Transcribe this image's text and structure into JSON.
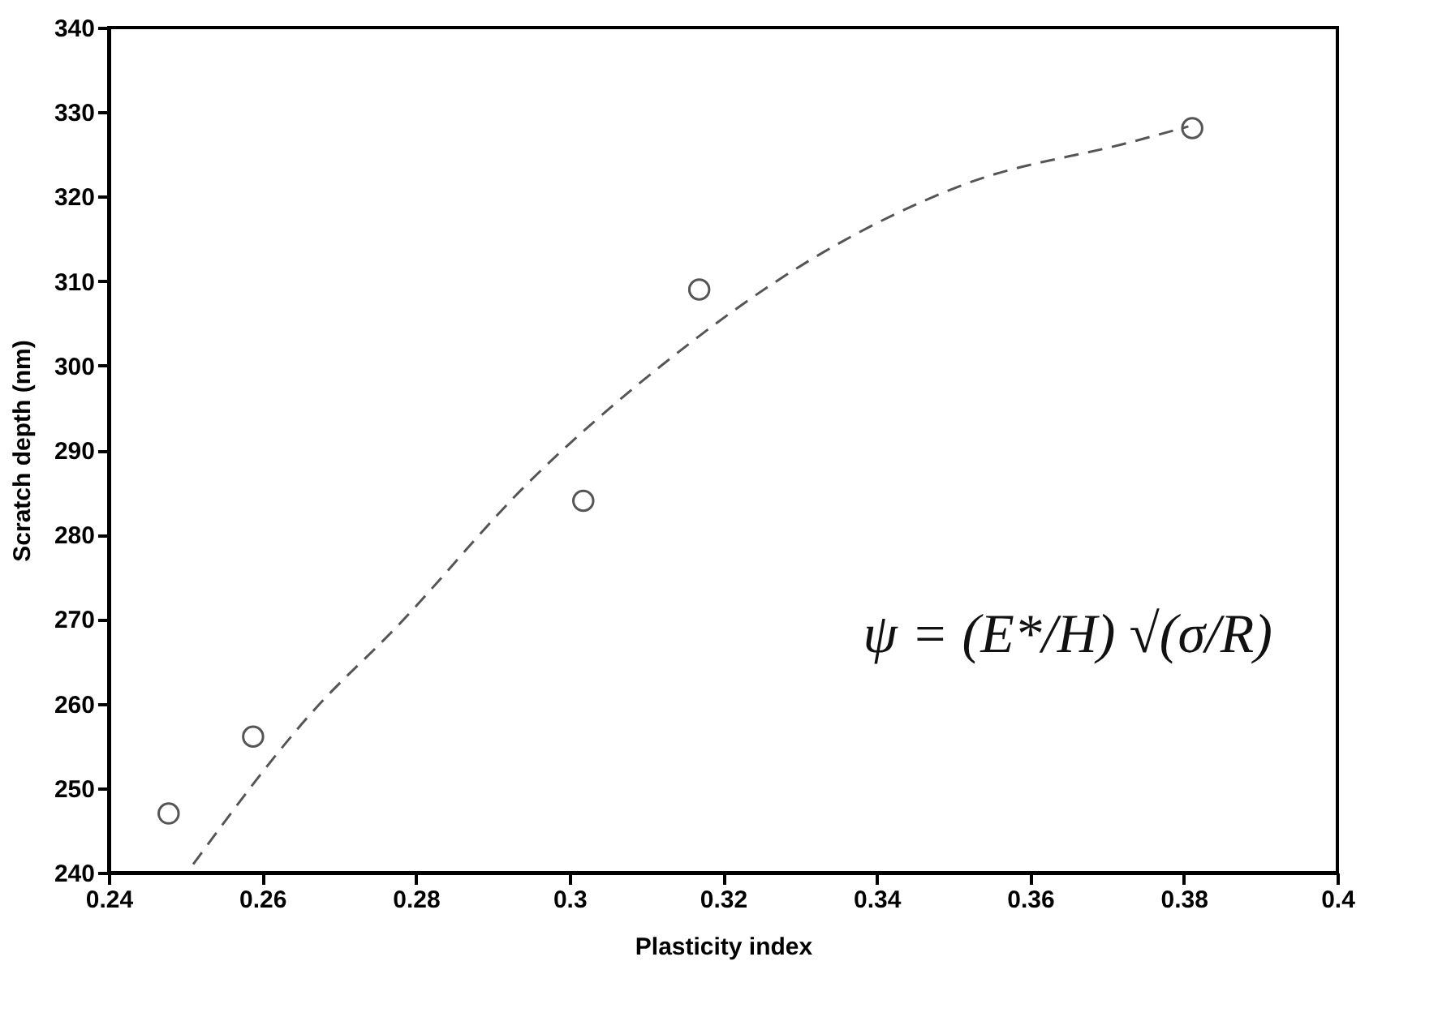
{
  "chart_data": {
    "type": "scatter",
    "xlabel": "Plasticity index",
    "ylabel": "Scratch depth (nm)",
    "xlim": [
      0.24,
      0.4
    ],
    "ylim": [
      240,
      340
    ],
    "xticks": [
      0.24,
      0.26,
      0.28,
      0.3,
      0.32,
      0.34,
      0.36,
      0.38,
      0.4
    ],
    "yticks": [
      240,
      250,
      260,
      270,
      280,
      290,
      300,
      310,
      320,
      330,
      340
    ],
    "grid": false,
    "annotations": [
      "ψ = (E*/H) √(σ/R)"
    ],
    "series": [
      {
        "color": "#555555",
        "marker": "circle",
        "x": [
          0.2478,
          0.2588,
          0.3018,
          0.3169,
          0.3811
        ],
        "values": [
          247.0,
          256.1,
          284.0,
          309.0,
          328.1
        ]
      },
      {
        "type": "line",
        "color": "#555555",
        "line_style": "dashed",
        "x": [
          0.251,
          0.2667,
          0.2772,
          0.2946,
          0.3121,
          0.331,
          0.3519,
          0.3729,
          0.3806
        ],
        "values": [
          241.0,
          259.2,
          268.8,
          286.1,
          300.1,
          312.3,
          321.6,
          326.4,
          328.3
        ]
      }
    ]
  }
}
